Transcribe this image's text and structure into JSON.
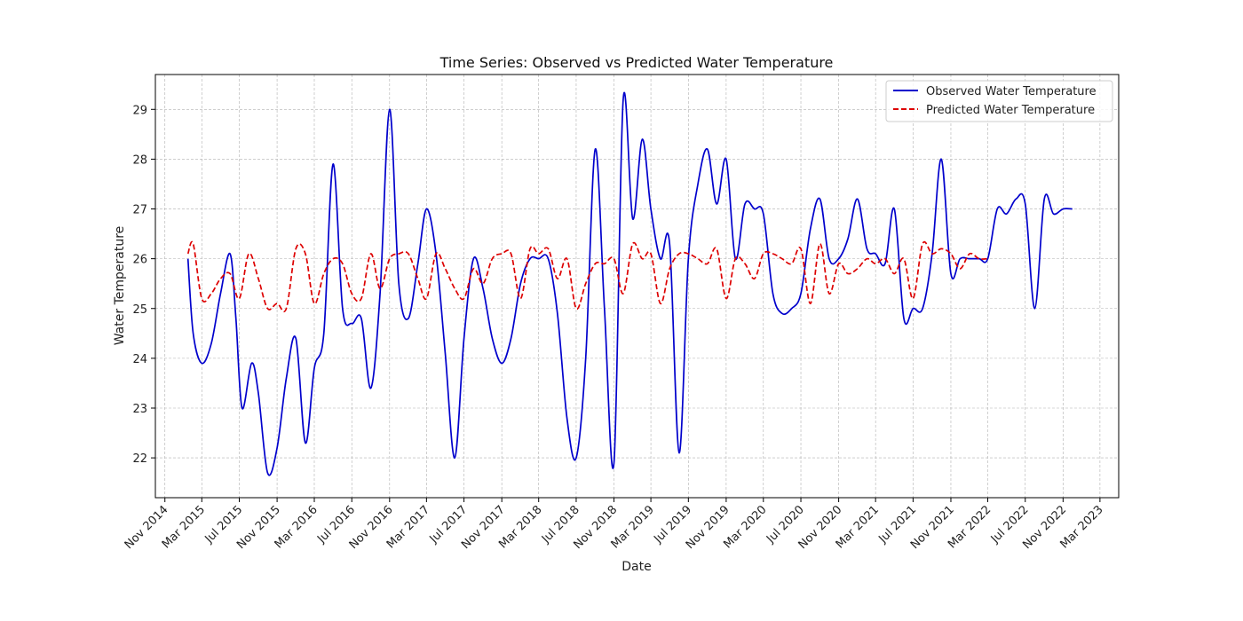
{
  "chart_data": {
    "type": "line",
    "title": "Time Series: Observed vs Predicted Water Temperature",
    "xlabel": "Date",
    "ylabel": "Water Temperature",
    "grid": true,
    "legend_position": "top-right",
    "xlim": [
      "2014-10-01",
      "2023-05-01"
    ],
    "ylim": [
      21.2,
      29.7
    ],
    "x_ticks": [
      {
        "date": "2014-11-01",
        "label": "Nov 2014"
      },
      {
        "date": "2015-03-01",
        "label": "Mar 2015"
      },
      {
        "date": "2015-07-01",
        "label": "Jul 2015"
      },
      {
        "date": "2015-11-01",
        "label": "Nov 2015"
      },
      {
        "date": "2016-03-01",
        "label": "Mar 2016"
      },
      {
        "date": "2016-07-01",
        "label": "Jul 2016"
      },
      {
        "date": "2016-11-01",
        "label": "Nov 2016"
      },
      {
        "date": "2017-03-01",
        "label": "Mar 2017"
      },
      {
        "date": "2017-07-01",
        "label": "Jul 2017"
      },
      {
        "date": "2017-11-01",
        "label": "Nov 2017"
      },
      {
        "date": "2018-03-01",
        "label": "Mar 2018"
      },
      {
        "date": "2018-07-01",
        "label": "Jul 2018"
      },
      {
        "date": "2018-11-01",
        "label": "Nov 2018"
      },
      {
        "date": "2019-03-01",
        "label": "Mar 2019"
      },
      {
        "date": "2019-07-01",
        "label": "Jul 2019"
      },
      {
        "date": "2019-11-01",
        "label": "Nov 2019"
      },
      {
        "date": "2020-03-01",
        "label": "Mar 2020"
      },
      {
        "date": "2020-07-01",
        "label": "Jul 2020"
      },
      {
        "date": "2020-11-01",
        "label": "Nov 2020"
      },
      {
        "date": "2021-03-01",
        "label": "Mar 2021"
      },
      {
        "date": "2021-07-01",
        "label": "Jul 2021"
      },
      {
        "date": "2021-11-01",
        "label": "Nov 2021"
      },
      {
        "date": "2022-03-01",
        "label": "Mar 2022"
      },
      {
        "date": "2022-07-01",
        "label": "Jul 2022"
      },
      {
        "date": "2022-11-01",
        "label": "Nov 2022"
      },
      {
        "date": "2023-03-01",
        "label": "Mar 2023"
      }
    ],
    "y_ticks": [
      22,
      23,
      24,
      25,
      26,
      27,
      28,
      29
    ],
    "series": [
      {
        "name": "Observed Water Temperature",
        "color": "#0000cc",
        "line_style": "solid",
        "points": [
          [
            "2015-01-15",
            26.0
          ],
          [
            "2015-02-01",
            24.5
          ],
          [
            "2015-03-01",
            23.9
          ],
          [
            "2015-04-01",
            24.3
          ],
          [
            "2015-05-01",
            25.3
          ],
          [
            "2015-06-01",
            26.1
          ],
          [
            "2015-06-20",
            24.8
          ],
          [
            "2015-07-10",
            23.0
          ],
          [
            "2015-08-10",
            23.9
          ],
          [
            "2015-09-01",
            23.3
          ],
          [
            "2015-10-01",
            21.7
          ],
          [
            "2015-11-01",
            22.2
          ],
          [
            "2015-12-01",
            23.6
          ],
          [
            "2016-01-01",
            24.4
          ],
          [
            "2016-02-01",
            22.3
          ],
          [
            "2016-03-01",
            23.8
          ],
          [
            "2016-04-01",
            24.5
          ],
          [
            "2016-05-01",
            27.9
          ],
          [
            "2016-06-01",
            25.0
          ],
          [
            "2016-07-01",
            24.7
          ],
          [
            "2016-08-01",
            24.8
          ],
          [
            "2016-09-01",
            23.4
          ],
          [
            "2016-10-01",
            25.3
          ],
          [
            "2016-11-01",
            29.0
          ],
          [
            "2016-12-01",
            25.5
          ],
          [
            "2017-01-01",
            24.8
          ],
          [
            "2017-02-01",
            25.9
          ],
          [
            "2017-03-01",
            27.0
          ],
          [
            "2017-04-01",
            26.1
          ],
          [
            "2017-05-01",
            24.1
          ],
          [
            "2017-06-01",
            22.0
          ],
          [
            "2017-07-01",
            24.4
          ],
          [
            "2017-08-01",
            26.0
          ],
          [
            "2017-09-01",
            25.4
          ],
          [
            "2017-10-01",
            24.4
          ],
          [
            "2017-11-01",
            23.9
          ],
          [
            "2017-12-01",
            24.4
          ],
          [
            "2018-01-01",
            25.5
          ],
          [
            "2018-02-01",
            26.0
          ],
          [
            "2018-03-01",
            26.0
          ],
          [
            "2018-04-01",
            26.0
          ],
          [
            "2018-05-01",
            24.9
          ],
          [
            "2018-06-01",
            22.8
          ],
          [
            "2018-07-01",
            22.0
          ],
          [
            "2018-08-01",
            24.0
          ],
          [
            "2018-09-01",
            28.2
          ],
          [
            "2018-10-01",
            25.0
          ],
          [
            "2018-11-01",
            21.9
          ],
          [
            "2018-12-01",
            29.2
          ],
          [
            "2019-01-01",
            26.8
          ],
          [
            "2019-02-01",
            28.4
          ],
          [
            "2019-03-01",
            27.0
          ],
          [
            "2019-04-01",
            26.0
          ],
          [
            "2019-05-01",
            26.3
          ],
          [
            "2019-06-01",
            22.1
          ],
          [
            "2019-07-01",
            26.0
          ],
          [
            "2019-08-01",
            27.5
          ],
          [
            "2019-09-01",
            28.2
          ],
          [
            "2019-10-01",
            27.1
          ],
          [
            "2019-11-01",
            28.0
          ],
          [
            "2019-12-01",
            26.0
          ],
          [
            "2020-01-01",
            27.1
          ],
          [
            "2020-02-01",
            27.0
          ],
          [
            "2020-03-01",
            26.9
          ],
          [
            "2020-04-01",
            25.3
          ],
          [
            "2020-05-01",
            24.9
          ],
          [
            "2020-06-01",
            25.0
          ],
          [
            "2020-07-01",
            25.3
          ],
          [
            "2020-08-01",
            26.6
          ],
          [
            "2020-09-01",
            27.2
          ],
          [
            "2020-10-01",
            26.0
          ],
          [
            "2020-11-01",
            26.0
          ],
          [
            "2020-12-01",
            26.4
          ],
          [
            "2021-01-01",
            27.2
          ],
          [
            "2021-02-01",
            26.2
          ],
          [
            "2021-03-01",
            26.1
          ],
          [
            "2021-04-01",
            25.9
          ],
          [
            "2021-05-01",
            27.0
          ],
          [
            "2021-06-01",
            24.8
          ],
          [
            "2021-07-01",
            25.0
          ],
          [
            "2021-08-01",
            25.0
          ],
          [
            "2021-09-01",
            26.1
          ],
          [
            "2021-10-01",
            28.0
          ],
          [
            "2021-11-01",
            25.7
          ],
          [
            "2021-12-01",
            26.0
          ],
          [
            "2022-01-01",
            26.0
          ],
          [
            "2022-02-01",
            26.0
          ],
          [
            "2022-03-01",
            26.0
          ],
          [
            "2022-04-01",
            27.0
          ],
          [
            "2022-05-01",
            26.9
          ],
          [
            "2022-06-01",
            27.2
          ],
          [
            "2022-07-01",
            27.1
          ],
          [
            "2022-08-01",
            25.0
          ],
          [
            "2022-09-01",
            27.2
          ],
          [
            "2022-10-01",
            26.9
          ],
          [
            "2022-11-01",
            27.0
          ],
          [
            "2022-12-01",
            27.0
          ]
        ]
      },
      {
        "name": "Predicted Water Temperature",
        "color": "#dd0000",
        "line_style": "dashed",
        "points": [
          [
            "2015-01-15",
            26.1
          ],
          [
            "2015-02-01",
            26.3
          ],
          [
            "2015-03-01",
            25.2
          ],
          [
            "2015-04-01",
            25.3
          ],
          [
            "2015-05-01",
            25.6
          ],
          [
            "2015-06-01",
            25.7
          ],
          [
            "2015-07-01",
            25.2
          ],
          [
            "2015-08-01",
            26.1
          ],
          [
            "2015-09-01",
            25.6
          ],
          [
            "2015-10-01",
            25.0
          ],
          [
            "2015-11-01",
            25.1
          ],
          [
            "2015-12-01",
            25.0
          ],
          [
            "2016-01-01",
            26.2
          ],
          [
            "2016-02-01",
            26.1
          ],
          [
            "2016-03-01",
            25.1
          ],
          [
            "2016-04-01",
            25.7
          ],
          [
            "2016-05-01",
            26.0
          ],
          [
            "2016-06-01",
            25.9
          ],
          [
            "2016-07-01",
            25.3
          ],
          [
            "2016-08-01",
            25.2
          ],
          [
            "2016-09-01",
            26.1
          ],
          [
            "2016-10-01",
            25.4
          ],
          [
            "2016-11-01",
            26.0
          ],
          [
            "2016-12-01",
            26.1
          ],
          [
            "2017-01-01",
            26.1
          ],
          [
            "2017-02-01",
            25.6
          ],
          [
            "2017-03-01",
            25.2
          ],
          [
            "2017-04-01",
            26.1
          ],
          [
            "2017-05-01",
            25.8
          ],
          [
            "2017-06-01",
            25.4
          ],
          [
            "2017-07-01",
            25.2
          ],
          [
            "2017-08-01",
            25.8
          ],
          [
            "2017-09-01",
            25.5
          ],
          [
            "2017-10-01",
            26.0
          ],
          [
            "2017-11-01",
            26.1
          ],
          [
            "2017-12-01",
            26.1
          ],
          [
            "2018-01-01",
            25.2
          ],
          [
            "2018-02-01",
            26.2
          ],
          [
            "2018-03-01",
            26.1
          ],
          [
            "2018-04-01",
            26.2
          ],
          [
            "2018-05-01",
            25.6
          ],
          [
            "2018-06-01",
            26.0
          ],
          [
            "2018-07-01",
            25.0
          ],
          [
            "2018-08-01",
            25.5
          ],
          [
            "2018-09-01",
            25.9
          ],
          [
            "2018-10-01",
            25.9
          ],
          [
            "2018-11-01",
            26.0
          ],
          [
            "2018-12-01",
            25.3
          ],
          [
            "2019-01-01",
            26.3
          ],
          [
            "2019-02-01",
            26.0
          ],
          [
            "2019-03-01",
            26.1
          ],
          [
            "2019-04-01",
            25.1
          ],
          [
            "2019-05-01",
            25.8
          ],
          [
            "2019-06-01",
            26.1
          ],
          [
            "2019-07-01",
            26.1
          ],
          [
            "2019-08-01",
            26.0
          ],
          [
            "2019-09-01",
            25.9
          ],
          [
            "2019-10-01",
            26.2
          ],
          [
            "2019-11-01",
            25.2
          ],
          [
            "2019-12-01",
            26.0
          ],
          [
            "2020-01-01",
            25.9
          ],
          [
            "2020-02-01",
            25.6
          ],
          [
            "2020-03-01",
            26.1
          ],
          [
            "2020-04-01",
            26.1
          ],
          [
            "2020-05-01",
            26.0
          ],
          [
            "2020-06-01",
            25.9
          ],
          [
            "2020-07-01",
            26.2
          ],
          [
            "2020-08-01",
            25.1
          ],
          [
            "2020-09-01",
            26.3
          ],
          [
            "2020-10-01",
            25.3
          ],
          [
            "2020-11-01",
            25.9
          ],
          [
            "2020-12-01",
            25.7
          ],
          [
            "2021-01-01",
            25.8
          ],
          [
            "2021-02-01",
            26.0
          ],
          [
            "2021-03-01",
            25.9
          ],
          [
            "2021-04-01",
            26.0
          ],
          [
            "2021-05-01",
            25.7
          ],
          [
            "2021-06-01",
            26.0
          ],
          [
            "2021-07-01",
            25.2
          ],
          [
            "2021-08-01",
            26.3
          ],
          [
            "2021-09-01",
            26.1
          ],
          [
            "2021-10-01",
            26.2
          ],
          [
            "2021-11-01",
            26.1
          ],
          [
            "2021-12-01",
            25.8
          ],
          [
            "2022-01-01",
            26.1
          ],
          [
            "2022-02-01",
            26.0
          ],
          [
            "2022-03-01",
            26.0
          ]
        ]
      }
    ]
  }
}
